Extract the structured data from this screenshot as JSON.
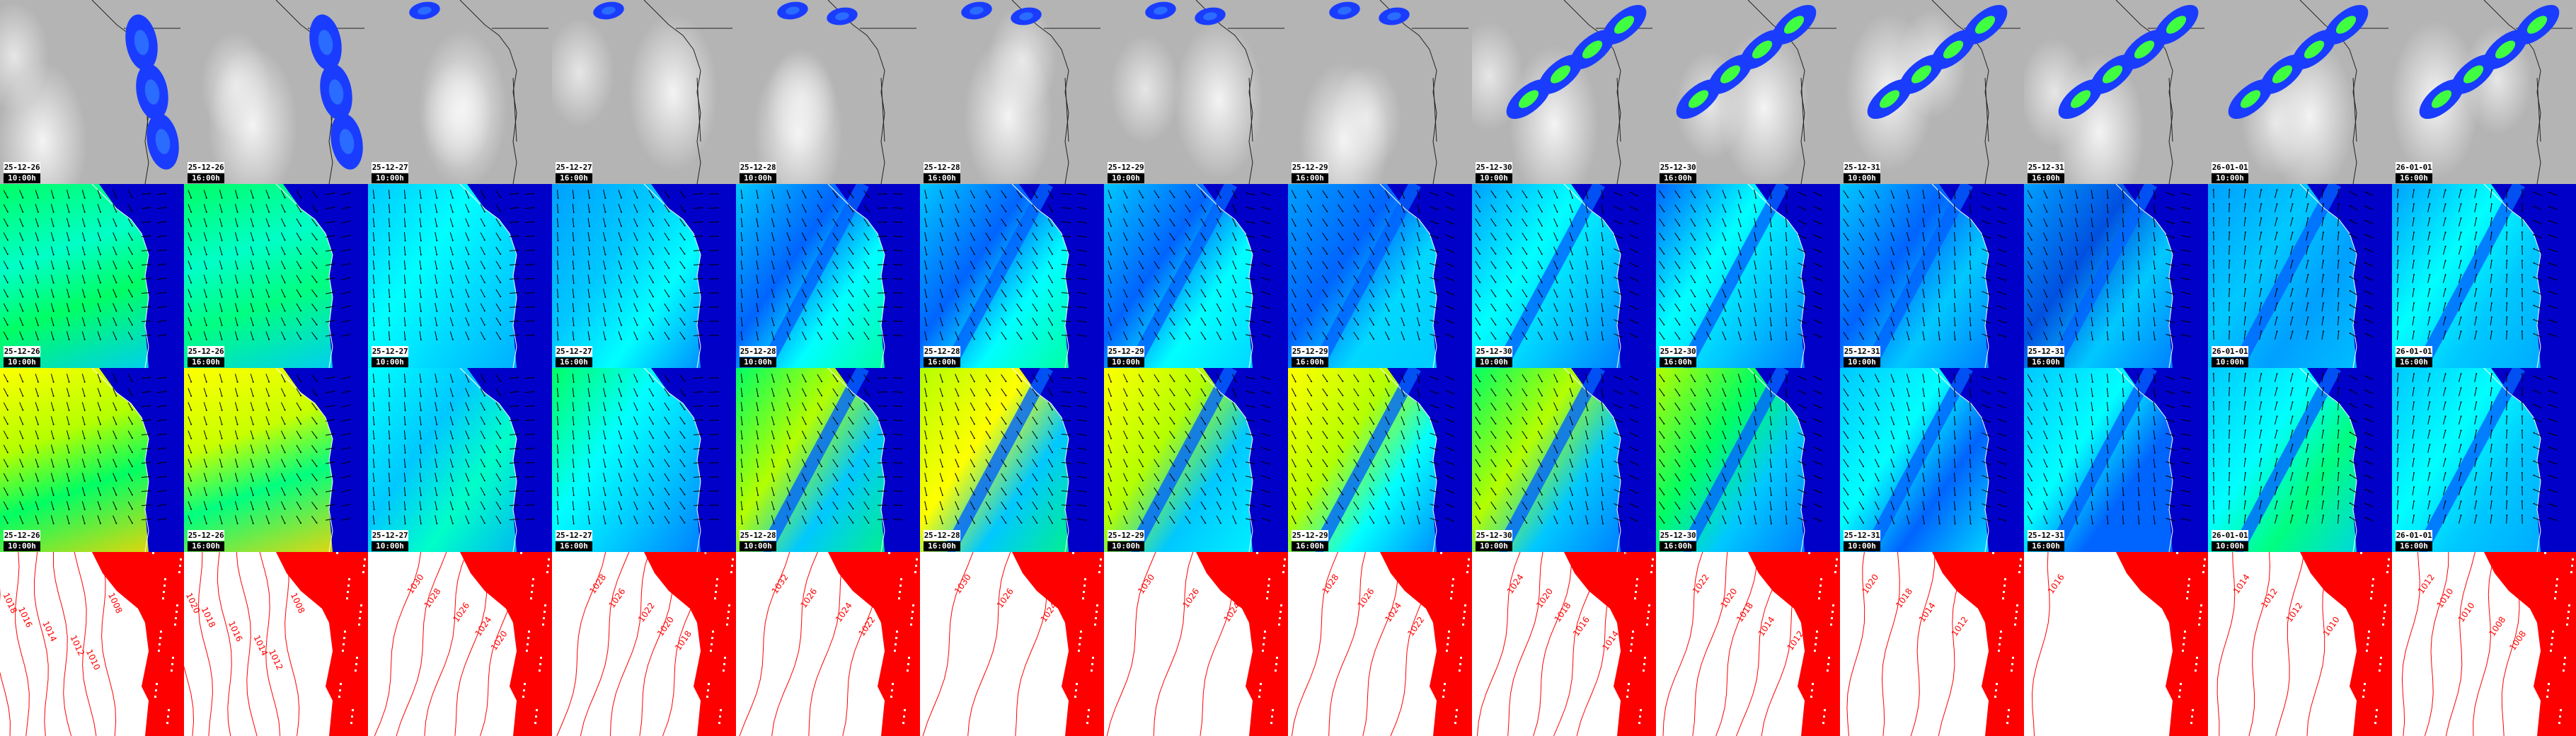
{
  "panel_rows": [
    "satellite-precipitation",
    "wind-speed-1",
    "wind-speed-2",
    "pressure-isobars"
  ],
  "colors": {
    "satellite_gray": "#b4b4b4",
    "cloud_blue": "#1a3cff",
    "wind_dark_blue": "#0000c8",
    "wind_blue": "#0064ff",
    "wind_light_blue": "#00b4ff",
    "wind_cyan": "#00ffff",
    "wind_green": "#00ff64",
    "wind_yellow_green": "#b4ff00",
    "wind_yellow": "#ffff00",
    "isobar_red": "#ff0000"
  },
  "columns": [
    {
      "date": "25-12-26",
      "time": "10:00h",
      "isobars": [
        "1018",
        "1016",
        "1014",
        "1012",
        "1010",
        "1008"
      ]
    },
    {
      "date": "25-12-26",
      "time": "16:00h",
      "isobars": [
        "1020",
        "1018",
        "1016",
        "1014",
        "1012",
        "1008"
      ]
    },
    {
      "date": "25-12-27",
      "time": "10:00h",
      "isobars": [
        "1030",
        "1028",
        "1026",
        "1024",
        "1020"
      ]
    },
    {
      "date": "25-12-27",
      "time": "16:00h",
      "isobars": [
        "1028",
        "1026",
        "1022",
        "1020",
        "1018"
      ]
    },
    {
      "date": "25-12-28",
      "time": "10:00h",
      "isobars": [
        "1032",
        "1026",
        "1024",
        "1022"
      ]
    },
    {
      "date": "25-12-28",
      "time": "16:00h",
      "isobars": [
        "1030",
        "1026",
        "1024"
      ]
    },
    {
      "date": "25-12-29",
      "time": "10:00h",
      "isobars": [
        "1030",
        "1026",
        "1024"
      ]
    },
    {
      "date": "25-12-29",
      "time": "16:00h",
      "isobars": [
        "1028",
        "1026",
        "1024",
        "1022"
      ]
    },
    {
      "date": "25-12-30",
      "time": "10:00h",
      "isobars": [
        "1024",
        "1020",
        "1018",
        "1016",
        "1014"
      ]
    },
    {
      "date": "25-12-30",
      "time": "16:00h",
      "isobars": [
        "1022",
        "1020",
        "1018",
        "1014",
        "1012"
      ]
    },
    {
      "date": "25-12-31",
      "time": "10:00h",
      "isobars": [
        "1020",
        "1018",
        "1014",
        "1012"
      ]
    },
    {
      "date": "25-12-31",
      "time": "16:00h",
      "isobars": [
        "1016"
      ]
    },
    {
      "date": "26-01-01",
      "time": "10:00h",
      "isobars": [
        "1014",
        "1012",
        "1012",
        "1010"
      ]
    },
    {
      "date": "26-01-01",
      "time": "16:00h",
      "isobars": [
        "1012",
        "1010",
        "1010",
        "1008",
        "1008"
      ]
    }
  ]
}
